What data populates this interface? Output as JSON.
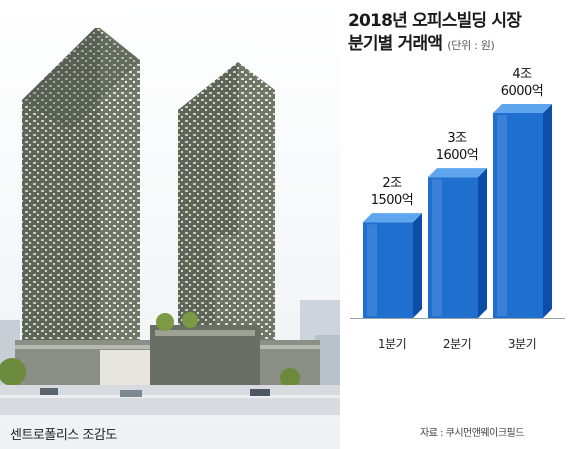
{
  "caption": "센트로폴리스 조감도",
  "title_line1": "2018년 오피스빌딩 시장",
  "title_line2": "분기별 거래액",
  "unit_note": "(단위 : 원)",
  "source": "자료 : 쿠시먼앤웨이크필드",
  "colors": {
    "bar_front": "#1f6fcf",
    "bar_side": "#0d4fa8",
    "bar_top": "#5fa6ee"
  },
  "chart_data": {
    "type": "bar",
    "title": "2018년 오피스빌딩 시장 분기별 거래액",
    "unit": "(단위 : 원)",
    "categories": [
      "1분기",
      "2분기",
      "3분기"
    ],
    "values": [
      21500,
      31600,
      46000
    ],
    "value_labels": [
      [
        "2조",
        "1500억"
      ],
      [
        "3조",
        "1600억"
      ],
      [
        "4조",
        "6000억"
      ]
    ],
    "value_unit": "억원",
    "grid": false,
    "legend": "none"
  }
}
